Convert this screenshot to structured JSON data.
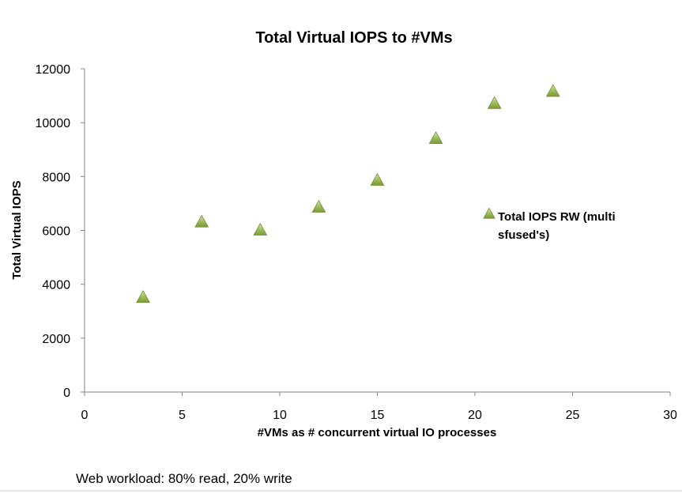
{
  "chart_data": {
    "type": "scatter",
    "title": "Total Virtual IOPS to #VMs",
    "xlabel": "#VMs as # concurrent virtual IO processes",
    "ylabel": "Total Virtual IOPS",
    "xlim": [
      0,
      30
    ],
    "ylim": [
      0,
      12000
    ],
    "xticks": [
      0,
      5,
      10,
      15,
      20,
      25,
      30
    ],
    "yticks": [
      0,
      2000,
      4000,
      6000,
      8000,
      10000,
      12000
    ],
    "grid": "horizontal-none",
    "legend_position": "right",
    "series": [
      {
        "name": "Total IOPS RW (multi sfused's)",
        "legend_lines": [
          "Total IOPS RW (multi",
          "sfused's)"
        ],
        "marker": "triangle",
        "color": "#9bbb59",
        "x": [
          3,
          6,
          9,
          12,
          15,
          18,
          21,
          24
        ],
        "y": [
          3500,
          6300,
          6000,
          6850,
          7850,
          9400,
          10700,
          11150
        ]
      }
    ]
  },
  "footnote": "Web workload: 80% read, 20% write"
}
